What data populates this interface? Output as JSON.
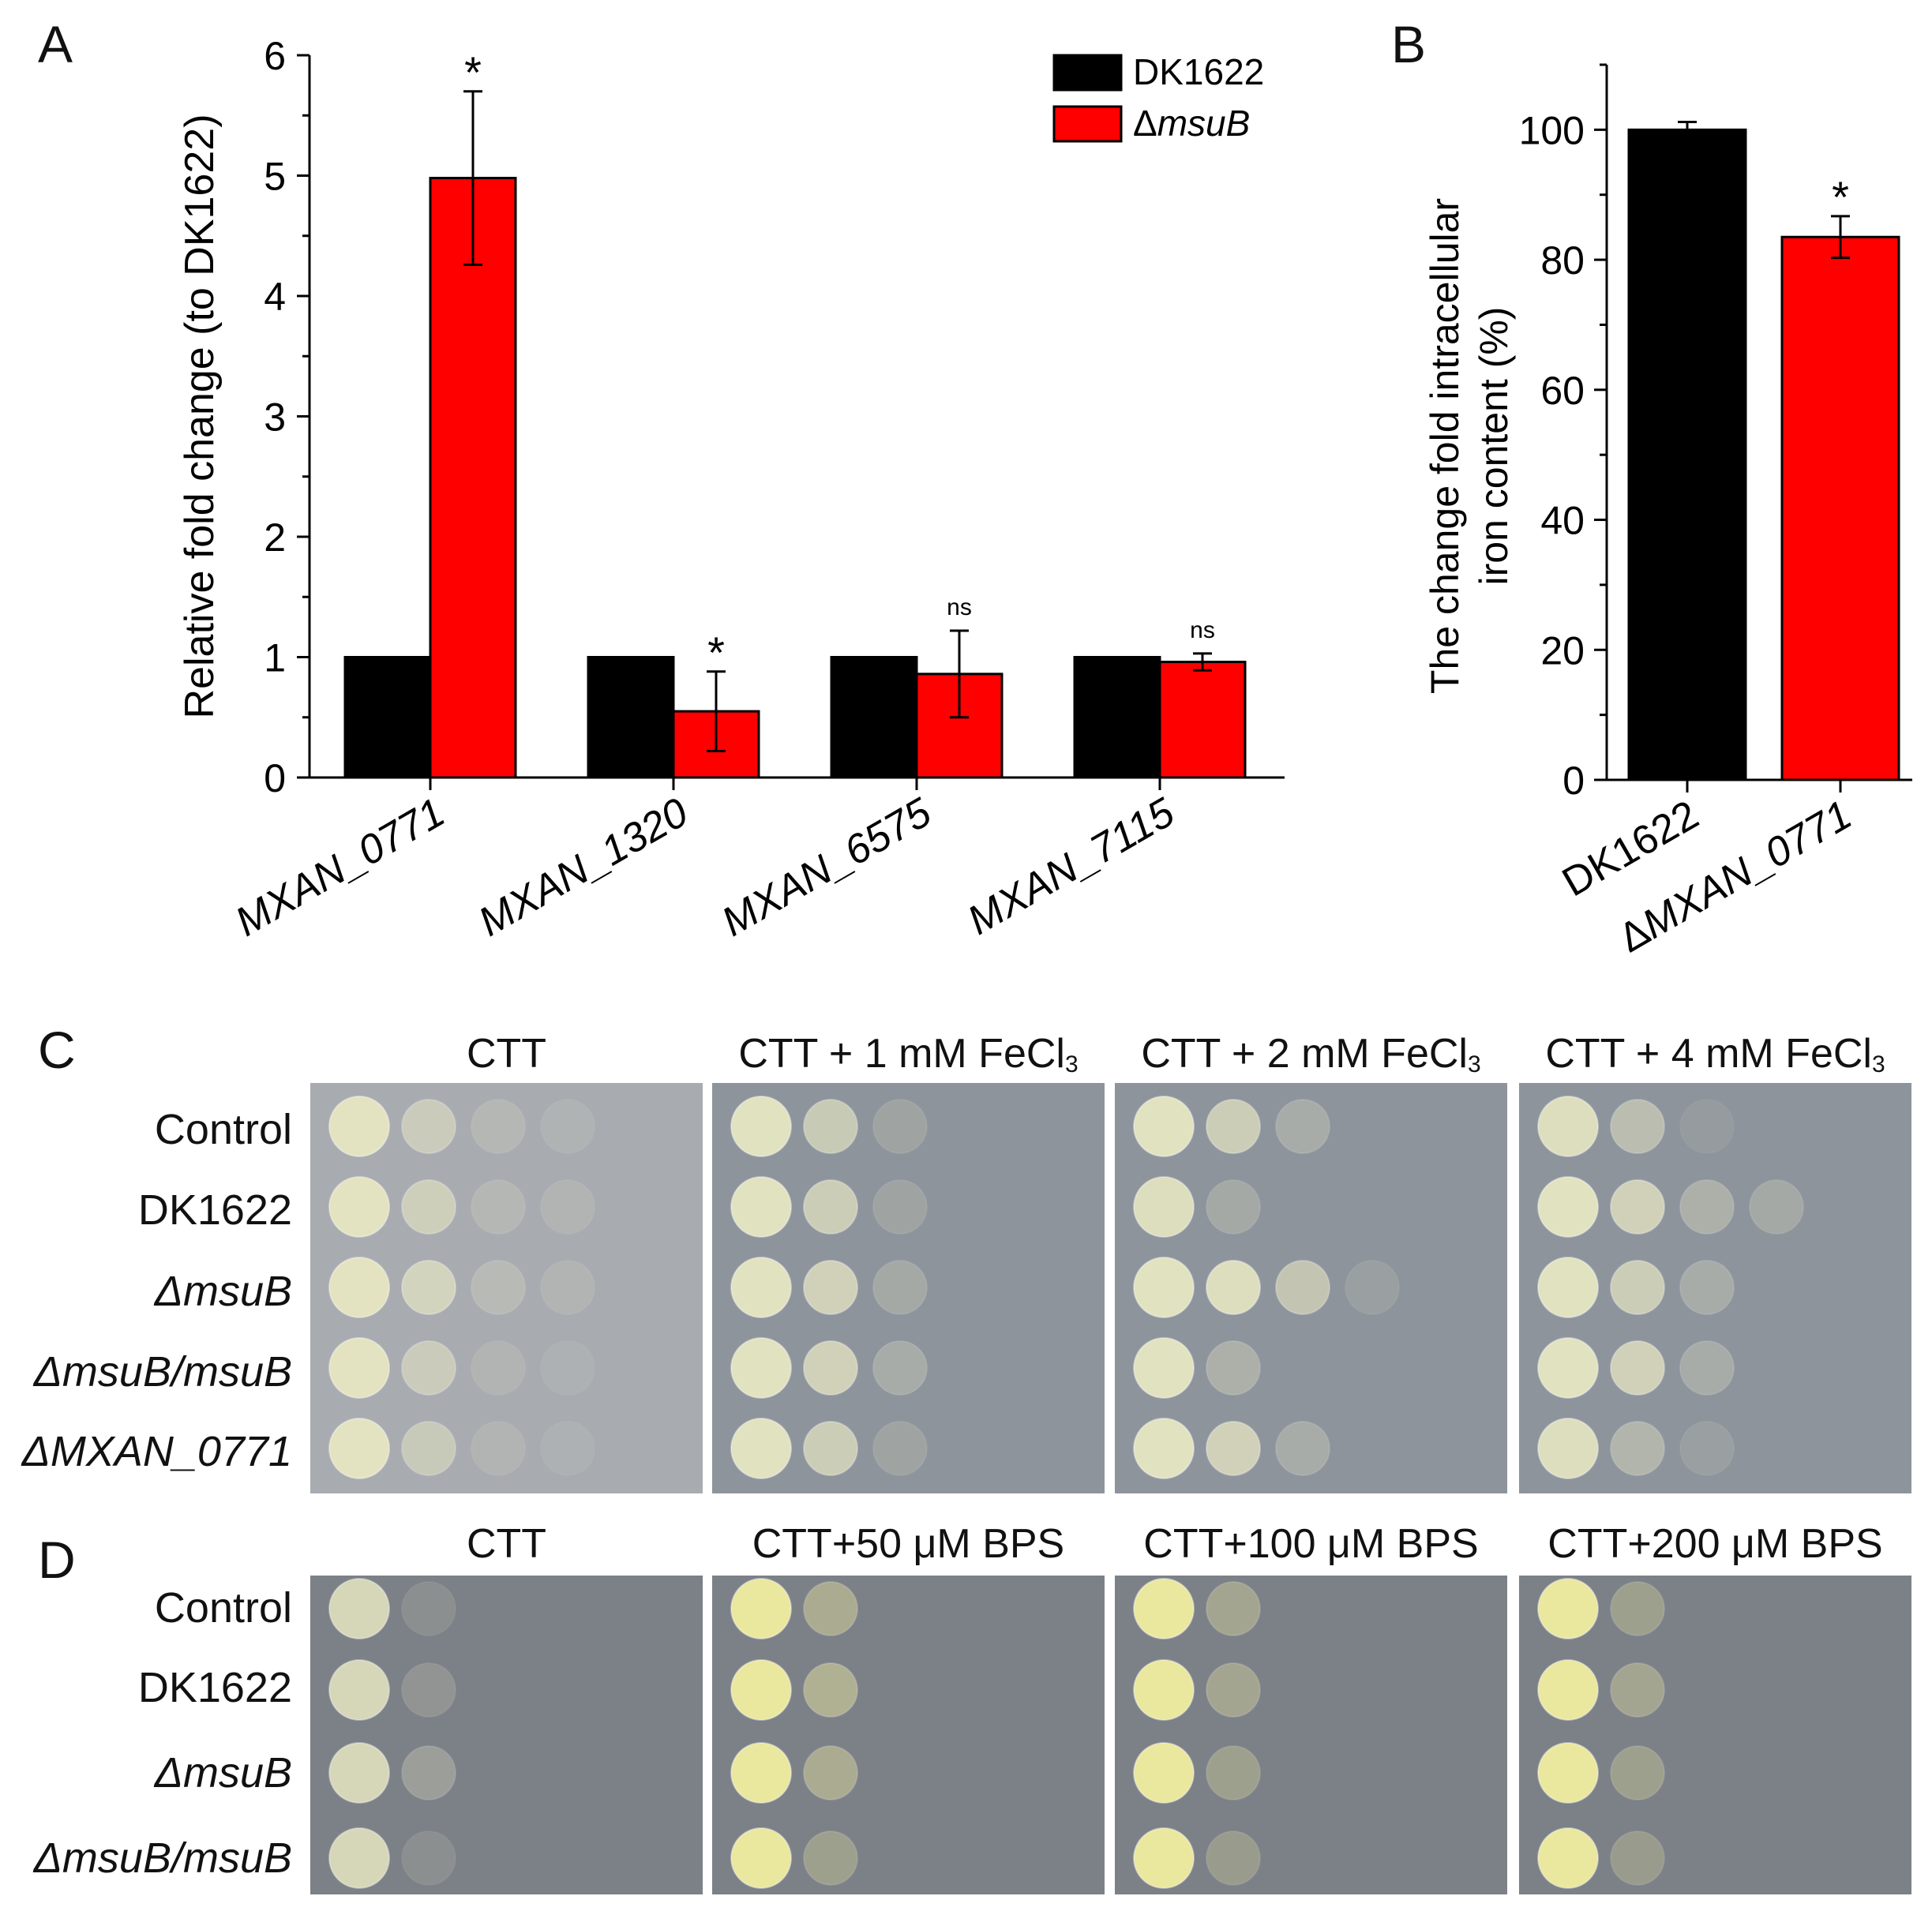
{
  "panels": {
    "A": "A",
    "B": "B",
    "C": "C",
    "D": "D"
  },
  "chart_data": [
    {
      "type": "bar",
      "panel": "A",
      "ylabel": "Relative fold change (to DK1622)",
      "ylim": [
        0,
        6
      ],
      "yticks": [
        "0",
        "1",
        "2",
        "3",
        "4",
        "5",
        "6"
      ],
      "categories": [
        "MXAN_0771",
        "MXAN_1320",
        "MXAN_6575",
        "MXAN_7115"
      ],
      "series": [
        {
          "name": "DK1622",
          "values": [
            1,
            1,
            1,
            1
          ],
          "errors": [
            0,
            0,
            0,
            0
          ],
          "color": "#000000"
        },
        {
          "name": "ΔmsuB",
          "values": [
            4.98,
            0.55,
            0.86,
            0.96
          ],
          "errors": [
            0.72,
            0.33,
            0.36,
            0.07
          ],
          "color": "#ff0000"
        }
      ],
      "annotations": [
        "*",
        "*",
        "ns",
        "ns"
      ],
      "legend": {
        "placement": "top-right",
        "entries": [
          "DK1622",
          "ΔmsuB"
        ]
      }
    },
    {
      "type": "bar",
      "panel": "B",
      "ylabel_line1": "The  change fold intracellular",
      "ylabel_line2": "iron content (%)",
      "ylim": [
        0,
        110
      ],
      "yticks": [
        "0",
        "20",
        "40",
        "60",
        "80",
        "100"
      ],
      "categories": [
        "DK1622",
        "ΔMXAN_0771"
      ],
      "values": [
        100,
        83.5
      ],
      "errors": [
        1.2,
        3.2
      ],
      "colors": [
        "#000000",
        "#ff0000"
      ],
      "annotations": [
        "",
        "*"
      ]
    }
  ],
  "panelC": {
    "columns": [
      "CTT",
      "CTT + 1 mM FeCl",
      "CTT + 2 mM FeCl",
      "CTT + 4 mM FeCl"
    ],
    "subscript": "3",
    "rows": [
      "Control",
      "DK1622",
      "ΔmsuB",
      "ΔmsuB/msuB",
      "ΔMXAN_0771"
    ]
  },
  "panelD": {
    "columns": [
      "CTT",
      "CTT+50 μM BPS",
      "CTT+100 μM BPS",
      "CTT+200 μM BPS"
    ],
    "rows": [
      "Control",
      "DK1622",
      "ΔmsuB",
      "ΔmsuB/msuB"
    ]
  },
  "colors": {
    "plate_c": "#8e949c",
    "plate_c_first": "#a8acb1",
    "plate_d": "#7c8087",
    "colony": "#e6e6c2",
    "colony_d": "#f0eca0"
  }
}
